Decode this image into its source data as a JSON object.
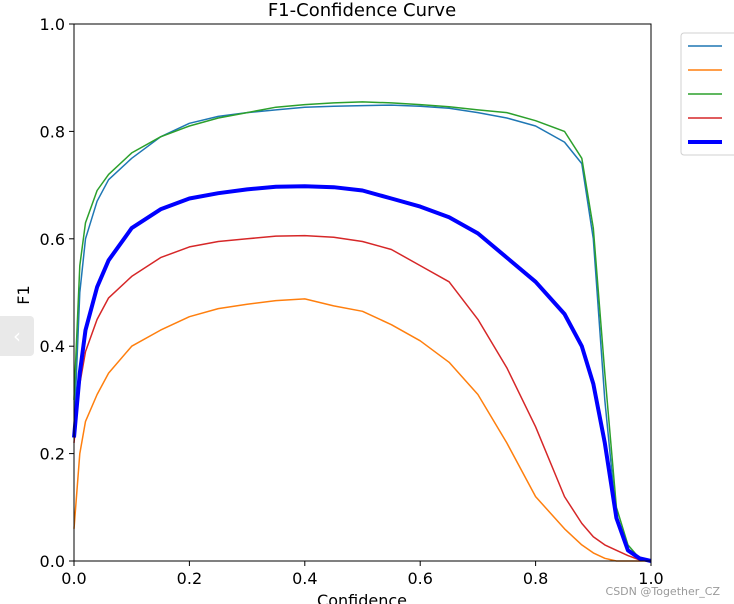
{
  "chart_data": {
    "type": "line",
    "title": "F1-Confidence Curve",
    "xlabel": "Confidence",
    "ylabel": "F1",
    "xlim": [
      0.0,
      1.0
    ],
    "ylim": [
      0.0,
      1.0
    ],
    "x_ticks": [
      "0.0",
      "0.2",
      "0.4",
      "0.6",
      "0.8",
      "1.0"
    ],
    "y_ticks": [
      "0.0",
      "0.2",
      "0.4",
      "0.6",
      "0.8",
      "1.0"
    ],
    "legend_position": "outside-top-right",
    "grid": false,
    "x": [
      0.0,
      0.01,
      0.02,
      0.04,
      0.06,
      0.1,
      0.15,
      0.2,
      0.25,
      0.3,
      0.35,
      0.4,
      0.45,
      0.5,
      0.55,
      0.6,
      0.65,
      0.7,
      0.75,
      0.8,
      0.85,
      0.88,
      0.9,
      0.92,
      0.94,
      0.96,
      0.98,
      1.0
    ],
    "series": [
      {
        "color": "#1f77b4",
        "width": 1.5,
        "values": [
          0.24,
          0.5,
          0.6,
          0.67,
          0.71,
          0.75,
          0.79,
          0.815,
          0.828,
          0.835,
          0.84,
          0.845,
          0.847,
          0.848,
          0.849,
          0.847,
          0.843,
          0.835,
          0.825,
          0.81,
          0.78,
          0.74,
          0.6,
          0.3,
          0.08,
          0.02,
          0.005,
          0.0
        ]
      },
      {
        "color": "#ff7f0e",
        "width": 1.5,
        "values": [
          0.06,
          0.2,
          0.26,
          0.31,
          0.35,
          0.4,
          0.43,
          0.455,
          0.47,
          0.478,
          0.485,
          0.488,
          0.475,
          0.465,
          0.44,
          0.41,
          0.37,
          0.31,
          0.22,
          0.12,
          0.06,
          0.03,
          0.015,
          0.005,
          0.0,
          0.0,
          0.0,
          0.0
        ]
      },
      {
        "color": "#2ca02c",
        "width": 1.5,
        "values": [
          0.3,
          0.55,
          0.63,
          0.69,
          0.72,
          0.76,
          0.79,
          0.81,
          0.825,
          0.835,
          0.845,
          0.85,
          0.853,
          0.855,
          0.853,
          0.85,
          0.846,
          0.84,
          0.835,
          0.82,
          0.8,
          0.75,
          0.62,
          0.35,
          0.1,
          0.03,
          0.005,
          0.0
        ]
      },
      {
        "color": "#d62728",
        "width": 1.5,
        "values": [
          0.22,
          0.33,
          0.39,
          0.45,
          0.49,
          0.53,
          0.565,
          0.585,
          0.595,
          0.6,
          0.605,
          0.606,
          0.603,
          0.595,
          0.58,
          0.55,
          0.52,
          0.45,
          0.36,
          0.25,
          0.12,
          0.07,
          0.045,
          0.03,
          0.02,
          0.01,
          0.002,
          0.0
        ]
      },
      {
        "color": "#0000ff",
        "width": 4,
        "values": [
          0.23,
          0.35,
          0.43,
          0.51,
          0.56,
          0.62,
          0.655,
          0.675,
          0.685,
          0.692,
          0.697,
          0.698,
          0.696,
          0.69,
          0.675,
          0.66,
          0.64,
          0.61,
          0.565,
          0.52,
          0.46,
          0.4,
          0.33,
          0.22,
          0.08,
          0.02,
          0.005,
          0.0
        ]
      }
    ]
  },
  "watermark": "CSDN @Together_CZ"
}
